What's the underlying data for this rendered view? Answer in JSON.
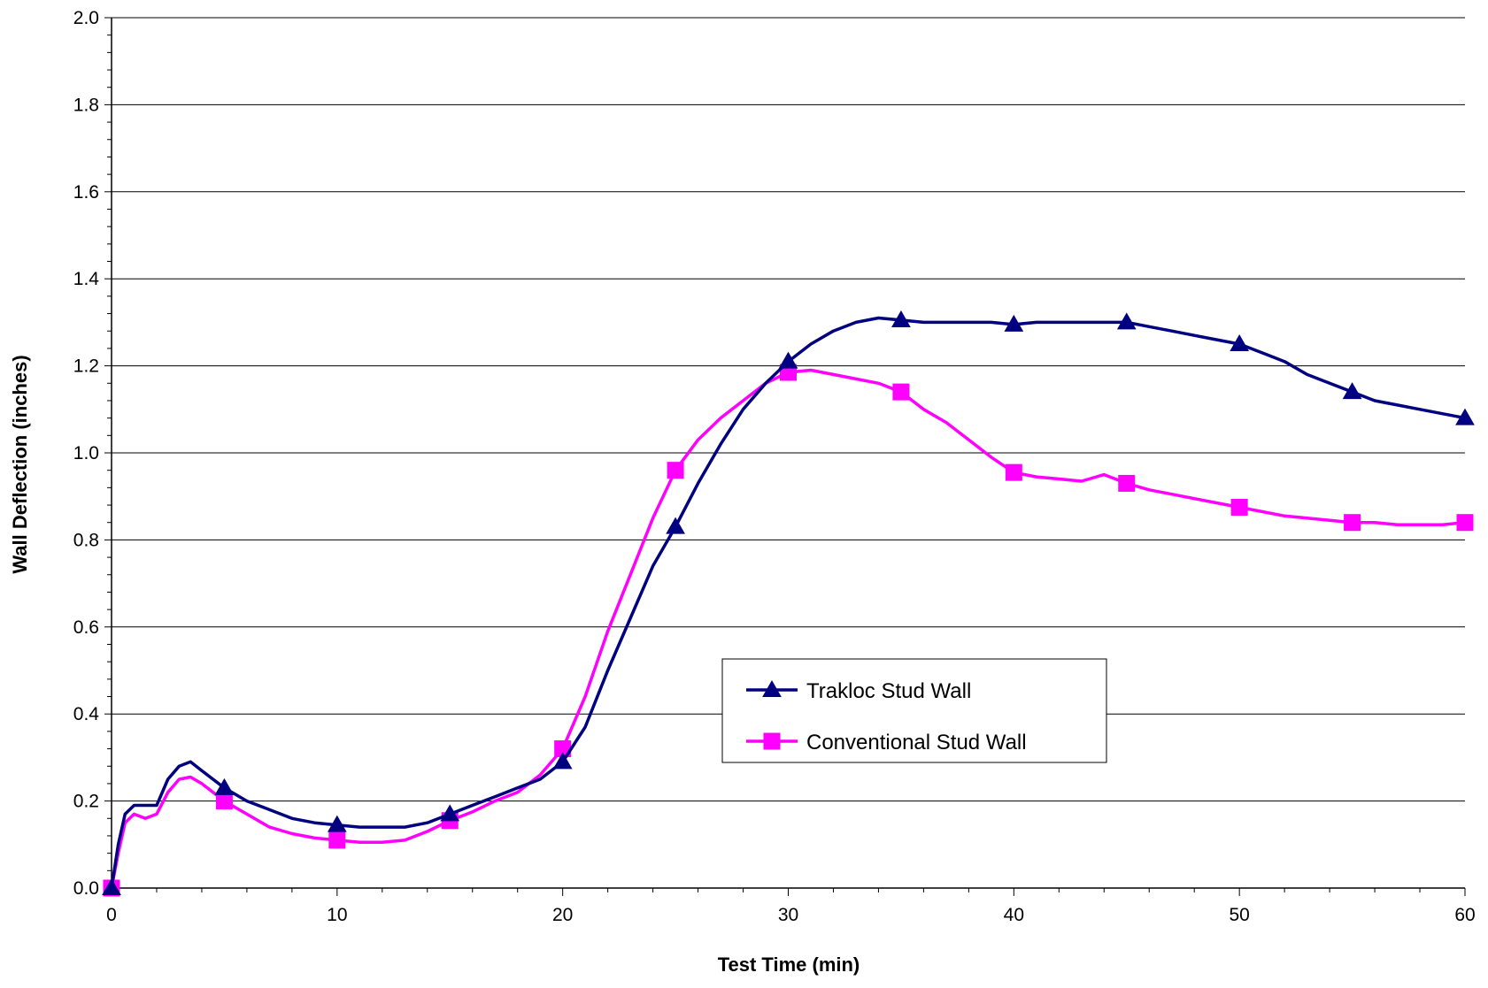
{
  "chart_data": {
    "type": "line",
    "title": "",
    "xlabel": "Test Time (min)",
    "ylabel": "Wall Deflection (inches)",
    "xlim": [
      0,
      60
    ],
    "ylim": [
      0,
      2.0
    ],
    "x_ticks": [
      0,
      10,
      20,
      30,
      40,
      50,
      60
    ],
    "x_tick_labels": [
      "0",
      "10",
      "20",
      "30",
      "40",
      "50",
      "60"
    ],
    "y_ticks": [
      0,
      0.2,
      0.4,
      0.6,
      0.8,
      1.0,
      1.2,
      1.4,
      1.6,
      1.8,
      2.0
    ],
    "y_tick_labels": [
      "0.0",
      "0.2",
      "0.4",
      "0.6",
      "0.8",
      "1.0",
      "1.2",
      "1.4",
      "1.6",
      "1.8",
      "2.0"
    ],
    "grid": "horizontal",
    "legend_position": "inside-center-right",
    "series": [
      {
        "name": "Trakloc Stud Wall",
        "color": "#000080",
        "marker": "triangle",
        "marker_x": [
          0,
          5,
          10,
          15,
          20,
          25,
          30,
          35,
          40,
          45,
          50,
          55,
          60
        ],
        "points": [
          [
            0,
            0.0
          ],
          [
            0.3,
            0.1
          ],
          [
            0.6,
            0.17
          ],
          [
            1,
            0.19
          ],
          [
            1.5,
            0.19
          ],
          [
            2,
            0.19
          ],
          [
            2.5,
            0.25
          ],
          [
            3,
            0.28
          ],
          [
            3.5,
            0.29
          ],
          [
            4,
            0.27
          ],
          [
            5,
            0.23
          ],
          [
            6,
            0.2
          ],
          [
            7,
            0.18
          ],
          [
            8,
            0.16
          ],
          [
            9,
            0.15
          ],
          [
            10,
            0.145
          ],
          [
            11,
            0.14
          ],
          [
            12,
            0.14
          ],
          [
            13,
            0.14
          ],
          [
            14,
            0.15
          ],
          [
            15,
            0.17
          ],
          [
            16,
            0.19
          ],
          [
            17,
            0.21
          ],
          [
            18,
            0.23
          ],
          [
            19,
            0.25
          ],
          [
            20,
            0.29
          ],
          [
            21,
            0.37
          ],
          [
            22,
            0.5
          ],
          [
            23,
            0.62
          ],
          [
            24,
            0.74
          ],
          [
            25,
            0.83
          ],
          [
            26,
            0.93
          ],
          [
            27,
            1.02
          ],
          [
            28,
            1.1
          ],
          [
            29,
            1.16
          ],
          [
            30,
            1.21
          ],
          [
            31,
            1.25
          ],
          [
            32,
            1.28
          ],
          [
            33,
            1.3
          ],
          [
            34,
            1.31
          ],
          [
            35,
            1.305
          ],
          [
            36,
            1.3
          ],
          [
            37,
            1.3
          ],
          [
            38,
            1.3
          ],
          [
            39,
            1.3
          ],
          [
            40,
            1.295
          ],
          [
            41,
            1.3
          ],
          [
            42,
            1.3
          ],
          [
            43,
            1.3
          ],
          [
            44,
            1.3
          ],
          [
            45,
            1.3
          ],
          [
            46,
            1.29
          ],
          [
            47,
            1.28
          ],
          [
            48,
            1.27
          ],
          [
            49,
            1.26
          ],
          [
            50,
            1.25
          ],
          [
            51,
            1.23
          ],
          [
            52,
            1.21
          ],
          [
            53,
            1.18
          ],
          [
            54,
            1.16
          ],
          [
            55,
            1.14
          ],
          [
            56,
            1.12
          ],
          [
            57,
            1.11
          ],
          [
            58,
            1.1
          ],
          [
            59,
            1.09
          ],
          [
            60,
            1.08
          ]
        ]
      },
      {
        "name": "Conventional Stud Wall",
        "color": "#FF00FF",
        "marker": "square",
        "marker_x": [
          0,
          5,
          10,
          15,
          20,
          25,
          30,
          35,
          40,
          45,
          50,
          55,
          60
        ],
        "points": [
          [
            0,
            0.0
          ],
          [
            0.3,
            0.08
          ],
          [
            0.6,
            0.15
          ],
          [
            1,
            0.17
          ],
          [
            1.5,
            0.16
          ],
          [
            2,
            0.17
          ],
          [
            2.5,
            0.22
          ],
          [
            3,
            0.25
          ],
          [
            3.5,
            0.255
          ],
          [
            4,
            0.24
          ],
          [
            5,
            0.2
          ],
          [
            6,
            0.17
          ],
          [
            7,
            0.14
          ],
          [
            8,
            0.125
          ],
          [
            9,
            0.115
          ],
          [
            10,
            0.11
          ],
          [
            11,
            0.105
          ],
          [
            12,
            0.105
          ],
          [
            13,
            0.11
          ],
          [
            14,
            0.13
          ],
          [
            15,
            0.155
          ],
          [
            16,
            0.175
          ],
          [
            17,
            0.2
          ],
          [
            18,
            0.22
          ],
          [
            19,
            0.26
          ],
          [
            20,
            0.32
          ],
          [
            21,
            0.44
          ],
          [
            22,
            0.59
          ],
          [
            23,
            0.72
          ],
          [
            24,
            0.85
          ],
          [
            25,
            0.96
          ],
          [
            26,
            1.03
          ],
          [
            27,
            1.08
          ],
          [
            28,
            1.12
          ],
          [
            29,
            1.16
          ],
          [
            30,
            1.185
          ],
          [
            31,
            1.19
          ],
          [
            32,
            1.18
          ],
          [
            33,
            1.17
          ],
          [
            34,
            1.16
          ],
          [
            35,
            1.14
          ],
          [
            36,
            1.1
          ],
          [
            37,
            1.07
          ],
          [
            38,
            1.03
          ],
          [
            39,
            0.99
          ],
          [
            40,
            0.955
          ],
          [
            41,
            0.945
          ],
          [
            42,
            0.94
          ],
          [
            43,
            0.935
          ],
          [
            44,
            0.95
          ],
          [
            45,
            0.93
          ],
          [
            46,
            0.915
          ],
          [
            47,
            0.905
          ],
          [
            48,
            0.895
          ],
          [
            49,
            0.885
          ],
          [
            50,
            0.875
          ],
          [
            51,
            0.865
          ],
          [
            52,
            0.855
          ],
          [
            53,
            0.85
          ],
          [
            54,
            0.845
          ],
          [
            55,
            0.84
          ],
          [
            56,
            0.84
          ],
          [
            57,
            0.835
          ],
          [
            58,
            0.835
          ],
          [
            59,
            0.835
          ],
          [
            60,
            0.84
          ]
        ]
      }
    ]
  }
}
